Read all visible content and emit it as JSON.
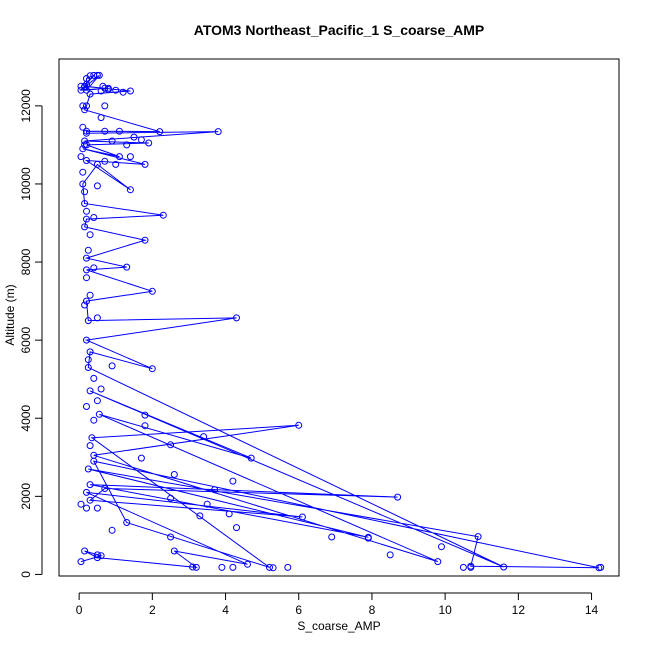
{
  "chart_data": {
    "type": "line",
    "title": "ATOM3 Northeast_Pacific_1 S_coarse_AMP",
    "xlabel": "S_coarse_AMP",
    "ylabel": "Altitude (m)",
    "xlim": [
      -0.55,
      14.75
    ],
    "ylim": [
      -40,
      13200
    ],
    "xticks": [
      0,
      2,
      4,
      6,
      8,
      10,
      12,
      14
    ],
    "yticks": [
      0,
      2000,
      4000,
      6000,
      8000,
      10000,
      12000
    ],
    "grid": false,
    "legend": "none",
    "series_color": "#0000ff",
    "series": [
      {
        "points": [
          [
            0.05,
            330
          ],
          [
            0.6,
            480
          ],
          [
            0.15,
            600
          ],
          [
            0.5,
            430
          ],
          [
            3.2,
            180
          ],
          [
            2.6,
            600
          ],
          [
            4.6,
            260
          ],
          [
            0.2,
            2100
          ],
          [
            6.1,
            1470
          ],
          [
            0.3,
            1900
          ],
          [
            0.7,
            2200
          ],
          [
            8.7,
            1980
          ],
          [
            0.3,
            2300
          ],
          [
            7.9,
            950
          ],
          [
            0.25,
            2700
          ],
          [
            10.9,
            970
          ],
          [
            10.7,
            210
          ],
          [
            14.2,
            170
          ],
          [
            0.4,
            2900
          ],
          [
            1.3,
            1330
          ],
          [
            5.2,
            180
          ],
          [
            0.35,
            3500
          ],
          [
            6.0,
            3820
          ],
          [
            0.4,
            3050
          ],
          [
            9.8,
            330
          ],
          [
            0.55,
            4100
          ],
          [
            4.7,
            2980
          ],
          [
            0.3,
            4700
          ],
          [
            11.6,
            190
          ],
          [
            0.25,
            5300
          ],
          [
            0.3,
            5700
          ],
          [
            2.0,
            5270
          ],
          [
            0.2,
            6000
          ],
          [
            4.3,
            6570
          ],
          [
            0.25,
            6500
          ],
          [
            0.2,
            7000
          ],
          [
            2.0,
            7250
          ],
          [
            0.2,
            7800
          ],
          [
            1.3,
            7870
          ],
          [
            0.2,
            8100
          ],
          [
            1.8,
            8560
          ],
          [
            0.15,
            8900
          ],
          [
            0.2,
            9100
          ],
          [
            2.3,
            9200
          ],
          [
            0.15,
            9500
          ],
          [
            0.1,
            10000
          ],
          [
            0.5,
            10500
          ],
          [
            1.4,
            9850
          ],
          [
            0.2,
            10600
          ],
          [
            1.8,
            10500
          ],
          [
            0.1,
            10900
          ],
          [
            1.1,
            10700
          ],
          [
            0.2,
            11000
          ],
          [
            1.9,
            11050
          ],
          [
            0.15,
            11100
          ],
          [
            3.8,
            11340
          ],
          [
            0.2,
            11300
          ],
          [
            0.2,
            11350
          ],
          [
            2.2,
            11340
          ],
          [
            0.15,
            11900
          ],
          [
            0.2,
            12000
          ],
          [
            0.3,
            12300
          ],
          [
            1.4,
            12380
          ],
          [
            0.15,
            12500
          ],
          [
            0.4,
            12780
          ],
          [
            0.2,
            12700
          ],
          [
            0.2,
            12550
          ],
          [
            0.05,
            12400
          ],
          [
            0.7,
            12450
          ],
          [
            0.2,
            12400
          ],
          [
            0.55,
            12780
          ],
          [
            0.15,
            12480
          ]
        ]
      }
    ],
    "extra_points": [
      [
        0.05,
        1800
      ],
      [
        0.2,
        1700
      ],
      [
        0.5,
        500
      ],
      [
        0.5,
        1700
      ],
      [
        0.9,
        1130
      ],
      [
        2.5,
        960
      ],
      [
        3.3,
        1500
      ],
      [
        3.5,
        1800
      ],
      [
        4.1,
        1550
      ],
      [
        2.5,
        1950
      ],
      [
        4.3,
        1200
      ],
      [
        6.9,
        960
      ],
      [
        7.9,
        930
      ],
      [
        8.5,
        500
      ],
      [
        9.9,
        710
      ],
      [
        10.5,
        180
      ],
      [
        10.7,
        180
      ],
      [
        14.25,
        180
      ],
      [
        2.6,
        2560
      ],
      [
        3.7,
        2170
      ],
      [
        4.2,
        2390
      ],
      [
        1.7,
        2980
      ],
      [
        2.5,
        3320
      ],
      [
        3.4,
        3530
      ],
      [
        1.8,
        3810
      ],
      [
        1.8,
        4080
      ],
      [
        0.4,
        3950
      ],
      [
        0.6,
        4750
      ],
      [
        0.5,
        4450
      ],
      [
        0.4,
        5020
      ],
      [
        0.9,
        5340
      ],
      [
        0.5,
        6570
      ],
      [
        0.3,
        7150
      ],
      [
        0.4,
        7850
      ],
      [
        0.3,
        8700
      ],
      [
        0.4,
        9140
      ],
      [
        0.5,
        9950
      ],
      [
        0.7,
        10580
      ],
      [
        1.0,
        10500
      ],
      [
        1.4,
        10700
      ],
      [
        1.5,
        11200
      ],
      [
        1.3,
        11000
      ],
      [
        0.9,
        11100
      ],
      [
        1.7,
        11130
      ],
      [
        0.7,
        11350
      ],
      [
        1.1,
        11350
      ],
      [
        0.6,
        11700
      ],
      [
        0.7,
        12000
      ],
      [
        1.2,
        12350
      ],
      [
        1.0,
        12400
      ],
      [
        0.8,
        12420
      ],
      [
        0.6,
        12380
      ],
      [
        0.3,
        12770
      ],
      [
        0.5,
        12780
      ],
      [
        0.65,
        12500
      ],
      [
        0.8,
        12450
      ],
      [
        3.1,
        190
      ],
      [
        3.9,
        180
      ],
      [
        4.2,
        180
      ],
      [
        5.3,
        170
      ],
      [
        5.7,
        180
      ],
      [
        0.3,
        3300
      ],
      [
        0.2,
        4300
      ],
      [
        0.25,
        5500
      ],
      [
        0.15,
        6900
      ],
      [
        0.2,
        7600
      ],
      [
        0.25,
        8300
      ],
      [
        0.2,
        9300
      ],
      [
        0.15,
        9800
      ],
      [
        0.1,
        10300
      ],
      [
        0.05,
        10700
      ],
      [
        0.15,
        11000
      ],
      [
        0.1,
        11450
      ],
      [
        0.1,
        12000
      ],
      [
        0.05,
        12500
      ]
    ]
  }
}
